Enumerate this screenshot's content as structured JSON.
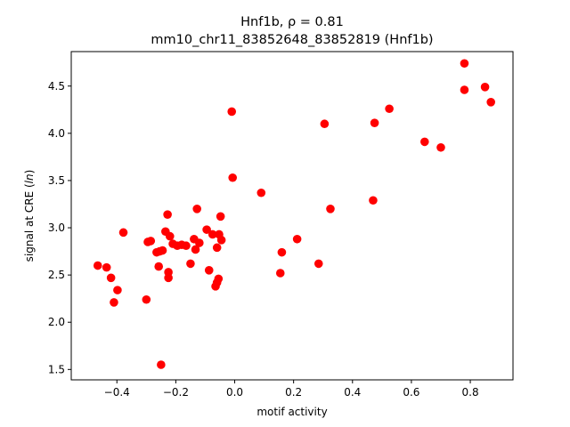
{
  "chart_data": {
    "type": "scatter",
    "title": "Hnf1b, ρ = 0.81",
    "subtitle": "mm10_chr11_83852648_83852819 (Hnf1b)",
    "xlabel": "motif activity",
    "ylabel_prefix": "signal at CRE (",
    "ylabel_var": "ln",
    "ylabel_suffix": ")",
    "xlim": [
      -0.555,
      0.945
    ],
    "ylim": [
      1.39,
      4.865
    ],
    "xticks": [
      -0.4,
      -0.2,
      0.0,
      0.2,
      0.4,
      0.6,
      0.8
    ],
    "xtick_labels": [
      "−0.4",
      "−0.2",
      "0.0",
      "0.2",
      "0.4",
      "0.6",
      "0.8"
    ],
    "yticks": [
      1.5,
      2.0,
      2.5,
      3.0,
      3.5,
      4.0,
      4.5
    ],
    "ytick_labels": [
      "1.5",
      "2.0",
      "2.5",
      "3.0",
      "3.5",
      "4.0",
      "4.5"
    ],
    "grid": false,
    "marker_color": "#ff0000",
    "points": [
      {
        "x": -0.465,
        "y": 2.6
      },
      {
        "x": -0.435,
        "y": 2.58
      },
      {
        "x": -0.42,
        "y": 2.47
      },
      {
        "x": -0.41,
        "y": 2.21
      },
      {
        "x": -0.398,
        "y": 2.34
      },
      {
        "x": -0.378,
        "y": 2.95
      },
      {
        "x": -0.3,
        "y": 2.24
      },
      {
        "x": -0.295,
        "y": 2.85
      },
      {
        "x": -0.285,
        "y": 2.86
      },
      {
        "x": -0.265,
        "y": 2.74
      },
      {
        "x": -0.258,
        "y": 2.59
      },
      {
        "x": -0.255,
        "y": 2.75
      },
      {
        "x": -0.25,
        "y": 1.55
      },
      {
        "x": -0.245,
        "y": 2.76
      },
      {
        "x": -0.235,
        "y": 2.96
      },
      {
        "x": -0.228,
        "y": 3.14
      },
      {
        "x": -0.225,
        "y": 2.53
      },
      {
        "x": -0.225,
        "y": 2.47
      },
      {
        "x": -0.22,
        "y": 2.91
      },
      {
        "x": -0.21,
        "y": 2.83
      },
      {
        "x": -0.195,
        "y": 2.81
      },
      {
        "x": -0.18,
        "y": 2.82
      },
      {
        "x": -0.165,
        "y": 2.81
      },
      {
        "x": -0.15,
        "y": 2.62
      },
      {
        "x": -0.138,
        "y": 2.88
      },
      {
        "x": -0.133,
        "y": 2.77
      },
      {
        "x": -0.128,
        "y": 3.2
      },
      {
        "x": -0.12,
        "y": 2.84
      },
      {
        "x": -0.095,
        "y": 2.98
      },
      {
        "x": -0.087,
        "y": 2.55
      },
      {
        "x": -0.075,
        "y": 2.93
      },
      {
        "x": -0.065,
        "y": 2.38
      },
      {
        "x": -0.06,
        "y": 2.42
      },
      {
        "x": -0.06,
        "y": 2.79
      },
      {
        "x": -0.055,
        "y": 2.46
      },
      {
        "x": -0.053,
        "y": 2.93
      },
      {
        "x": -0.048,
        "y": 3.12
      },
      {
        "x": -0.045,
        "y": 2.87
      },
      {
        "x": -0.01,
        "y": 4.23
      },
      {
        "x": -0.007,
        "y": 3.53
      },
      {
        "x": 0.09,
        "y": 3.37
      },
      {
        "x": 0.155,
        "y": 2.52
      },
      {
        "x": 0.16,
        "y": 2.74
      },
      {
        "x": 0.212,
        "y": 2.88
      },
      {
        "x": 0.285,
        "y": 2.62
      },
      {
        "x": 0.305,
        "y": 4.1
      },
      {
        "x": 0.325,
        "y": 3.2
      },
      {
        "x": 0.47,
        "y": 3.29
      },
      {
        "x": 0.475,
        "y": 4.11
      },
      {
        "x": 0.525,
        "y": 4.26
      },
      {
        "x": 0.645,
        "y": 3.91
      },
      {
        "x": 0.7,
        "y": 3.85
      },
      {
        "x": 0.78,
        "y": 4.74
      },
      {
        "x": 0.78,
        "y": 4.46
      },
      {
        "x": 0.85,
        "y": 4.49
      },
      {
        "x": 0.87,
        "y": 4.33
      }
    ]
  }
}
